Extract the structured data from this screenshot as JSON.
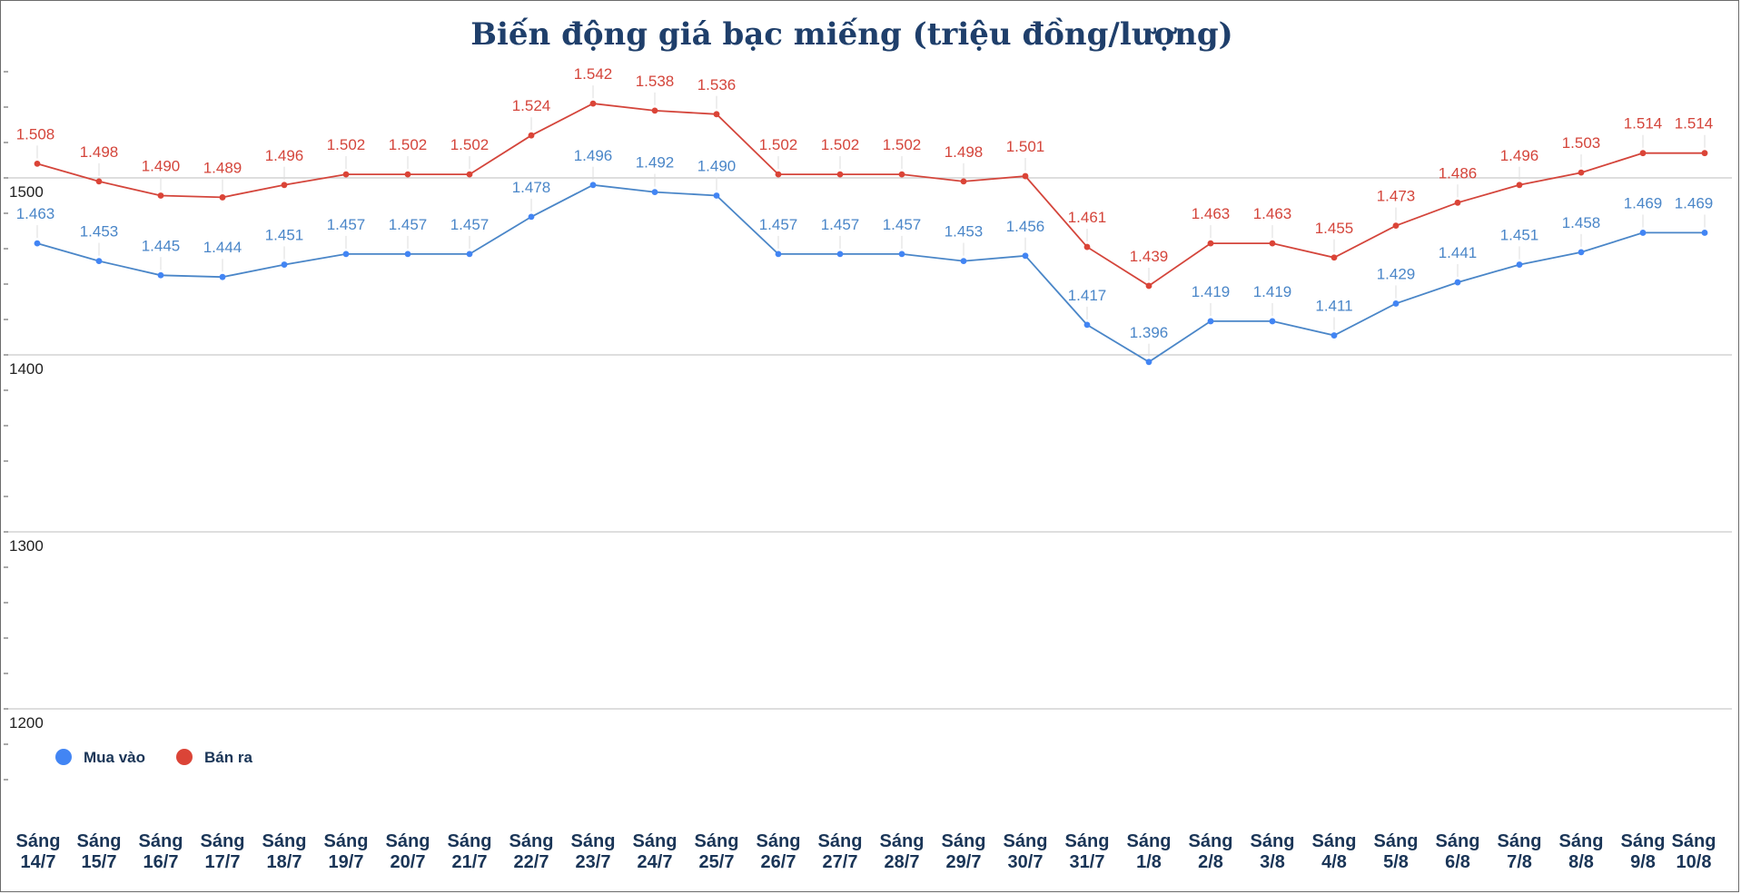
{
  "chart_data": {
    "type": "line",
    "title": "Biến động giá bạc miếng (triệu đồng/lượng)",
    "xlabel": "",
    "ylabel": "",
    "ylim": [
      1110,
      1580
    ],
    "yticks": [
      1200,
      1300,
      1400,
      1500
    ],
    "grid": true,
    "legend_position": "bottom-left",
    "categories": [
      [
        "Sáng",
        "14/7"
      ],
      [
        "Sáng",
        "15/7"
      ],
      [
        "Sáng",
        "16/7"
      ],
      [
        "Sáng",
        "17/7"
      ],
      [
        "Sáng",
        "18/7"
      ],
      [
        "Sáng",
        "19/7"
      ],
      [
        "Sáng",
        "20/7"
      ],
      [
        "Sáng",
        "21/7"
      ],
      [
        "Sáng",
        "22/7"
      ],
      [
        "Sáng",
        "23/7"
      ],
      [
        "Sáng",
        "24/7"
      ],
      [
        "Sáng",
        "25/7"
      ],
      [
        "Sáng",
        "26/7"
      ],
      [
        "Sáng",
        "27/7"
      ],
      [
        "Sáng",
        "28/7"
      ],
      [
        "Sáng",
        "29/7"
      ],
      [
        "Sáng",
        "30/7"
      ],
      [
        "Sáng",
        "31/7"
      ],
      [
        "Sáng",
        "1/8"
      ],
      [
        "Sáng",
        "2/8"
      ],
      [
        "Sáng",
        "3/8"
      ],
      [
        "Sáng",
        "4/8"
      ],
      [
        "Sáng",
        "5/8"
      ],
      [
        "Sáng",
        "6/8"
      ],
      [
        "Sáng",
        "7/8"
      ],
      [
        "Sáng",
        "8/8"
      ],
      [
        "Sáng",
        "9/8"
      ],
      [
        "Sáng",
        "10/8"
      ]
    ],
    "series": [
      {
        "name": "Mua vào",
        "color": "#4a86c8",
        "dot_color": "#4285f4",
        "values": [
          1463,
          1453,
          1445,
          1444,
          1451,
          1457,
          1457,
          1457,
          1478,
          1496,
          1492,
          1490,
          1457,
          1457,
          1457,
          1453,
          1456,
          1417,
          1396,
          1419,
          1419,
          1411,
          1429,
          1441,
          1451,
          1458,
          1469,
          1469
        ],
        "labels": [
          "1.463",
          "1.453",
          "1.445",
          "1.444",
          "1.451",
          "1.457",
          "1.457",
          "1.457",
          "1.478",
          "1.496",
          "1.492",
          "1.490",
          "1.457",
          "1.457",
          "1.457",
          "1.453",
          "1.456",
          "1.417",
          "1.396",
          "1.419",
          "1.419",
          "1.411",
          "1.429",
          "1.441",
          "1.451",
          "1.458",
          "1.469",
          "1.469"
        ]
      },
      {
        "name": "Bán ra",
        "color": "#d4453b",
        "dot_color": "#db4437",
        "values": [
          1508,
          1498,
          1490,
          1489,
          1496,
          1502,
          1502,
          1502,
          1524,
          1542,
          1538,
          1536,
          1502,
          1502,
          1502,
          1498,
          1501,
          1461,
          1439,
          1463,
          1463,
          1455,
          1473,
          1486,
          1496,
          1503,
          1514,
          1514
        ],
        "labels": [
          "1.508",
          "1.498",
          "1.490",
          "1.489",
          "1.496",
          "1.502",
          "1.502",
          "1.502",
          "1.524",
          "1.542",
          "1.538",
          "1.536",
          "1.502",
          "1.502",
          "1.502",
          "1.498",
          "1.501",
          "1.461",
          "1.439",
          "1.463",
          "1.463",
          "1.455",
          "1.473",
          "1.486",
          "1.496",
          "1.503",
          "1.514",
          "1.514"
        ]
      }
    ]
  }
}
